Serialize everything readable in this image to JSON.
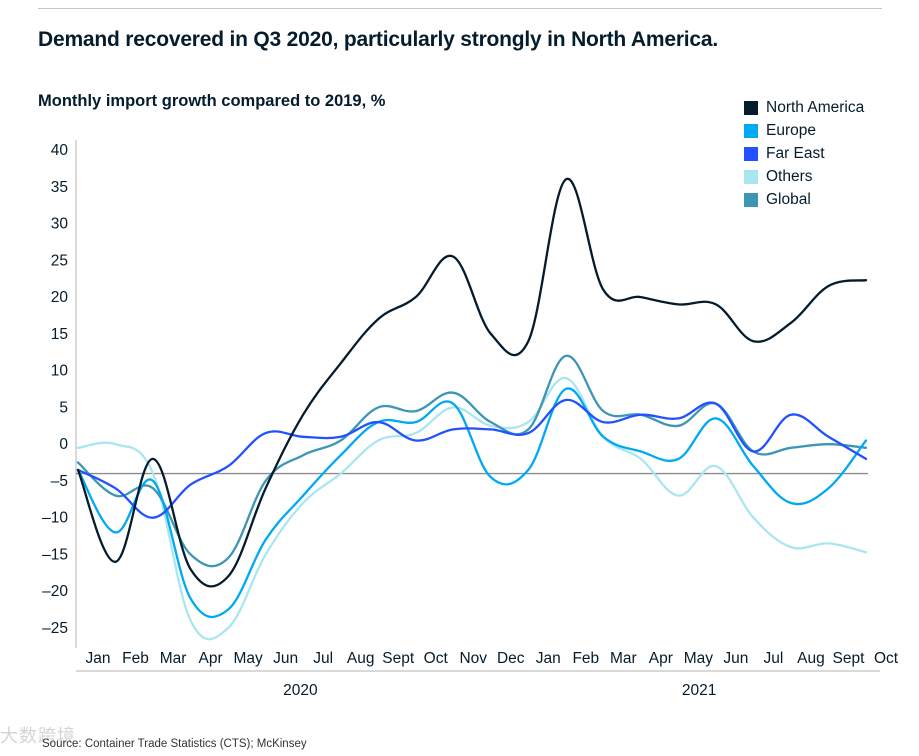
{
  "title": "Demand recovered in Q3 2020, particularly strongly in North America.",
  "source": "Source: Container Trade Statistics (CTS); McKinsey",
  "watermark": "大数跨境",
  "chart_data": {
    "type": "line",
    "title": "Demand recovered in Q3 2020, particularly strongly in North America.",
    "subtitle": "Monthly import growth compared to 2019, %",
    "x": [
      "Jan",
      "Feb",
      "Mar",
      "Apr",
      "May",
      "Jun",
      "Jul",
      "Aug",
      "Sept",
      "Oct",
      "Nov",
      "Dec",
      "Jan",
      "Feb",
      "Mar",
      "Apr",
      "May",
      "Jun",
      "Jul",
      "Aug",
      "Sept",
      "Oct"
    ],
    "x_groups": [
      {
        "label": "2020",
        "months": 12
      },
      {
        "label": "2021",
        "months": 10
      }
    ],
    "ylim": [
      -27,
      41
    ],
    "yticks": [
      40,
      35,
      30,
      25,
      20,
      15,
      10,
      5,
      0,
      -5,
      -10,
      -15,
      -20,
      -25
    ],
    "ytick_labels": [
      "40",
      "35",
      "30",
      "25",
      "20",
      "15",
      "10",
      "5",
      "0",
      "–5",
      "–10",
      "–15",
      "–20",
      "–25"
    ],
    "reference_line": -4,
    "legend_position": "top-right",
    "grid": false,
    "series": [
      {
        "name": "North America",
        "color": "#051c2c",
        "values": [
          -3.5,
          -16,
          -2,
          -17,
          -18,
          -6,
          4,
          11,
          17,
          20,
          25.5,
          15,
          14,
          36,
          21,
          20,
          19,
          19,
          14,
          16.5,
          21.5,
          22.3
        ]
      },
      {
        "name": "Europe",
        "color": "#00a9f4",
        "values": [
          -3.5,
          -12,
          -5,
          -21,
          -22.5,
          -13,
          -7,
          -1.5,
          3,
          3,
          5.5,
          -4.5,
          -3.5,
          7.5,
          1,
          -1,
          -2,
          3.5,
          -3,
          -8,
          -6,
          0.5
        ]
      },
      {
        "name": "Far East",
        "color": "#2251ff",
        "values": [
          -3.5,
          -6,
          -10,
          -5.5,
          -3,
          1.5,
          1,
          1,
          3,
          0.5,
          2,
          2,
          1.5,
          6,
          3,
          4,
          3.5,
          5.5,
          -1,
          4,
          1,
          -2
        ]
      },
      {
        "name": "Others",
        "color": "#aae6f0",
        "values": [
          -0.5,
          0,
          -4,
          -24,
          -25,
          -15,
          -8,
          -4,
          0.5,
          1.5,
          5,
          2.5,
          3,
          9,
          1,
          -2,
          -7,
          -3,
          -10,
          -14,
          -13.5,
          -14.7
        ]
      },
      {
        "name": "Global",
        "color": "#3c96b4",
        "values": [
          -2.5,
          -7,
          -6,
          -15,
          -15.5,
          -5,
          -1.5,
          0.5,
          5,
          4.5,
          7,
          3,
          2,
          12,
          4.5,
          4,
          2.5,
          5.5,
          -1,
          -0.5,
          0,
          -0.5
        ]
      }
    ]
  }
}
